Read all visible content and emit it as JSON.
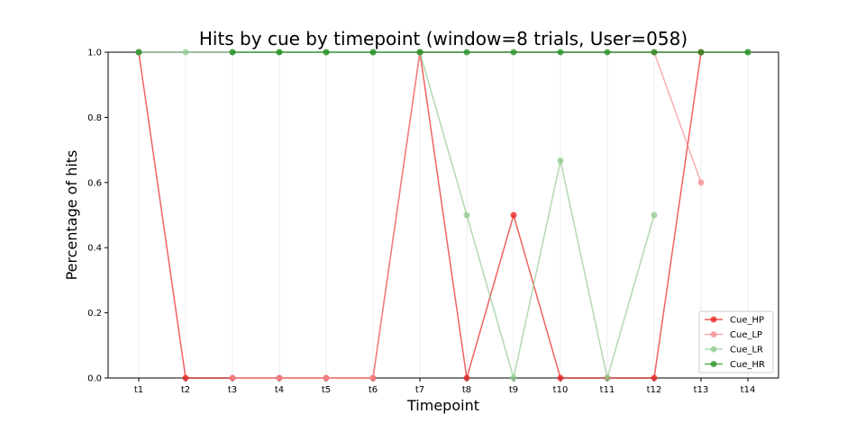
{
  "chart_data": {
    "type": "line",
    "title": "Hits by cue by timepoint (window=8 trials, User=058)",
    "xlabel": "Timepoint",
    "ylabel": "Percentage of hits",
    "categories": [
      "t1",
      "t2",
      "t3",
      "t4",
      "t5",
      "t6",
      "t7",
      "t8",
      "t9",
      "t10",
      "t11",
      "t12",
      "t13",
      "t14"
    ],
    "ylim": [
      0,
      1
    ],
    "yticks": [
      "0.0",
      "0.2",
      "0.4",
      "0.6",
      "0.8",
      "1.0"
    ],
    "grid": "vertical",
    "legend_position": "bottom-right",
    "series": [
      {
        "name": "Cue_HP",
        "color": "#e8201c",
        "values": [
          1,
          0,
          0,
          0,
          0,
          0,
          1,
          0,
          0.5,
          0,
          0,
          0,
          1,
          null
        ]
      },
      {
        "name": "Cue_LP",
        "color": "#f48c8e",
        "values": [
          1,
          null,
          0,
          0,
          0,
          0,
          1,
          null,
          null,
          null,
          null,
          1,
          0.6,
          null
        ]
      },
      {
        "name": "Cue_LR",
        "color": "#8fca8f",
        "values": [
          1,
          1,
          1,
          1,
          1,
          1,
          1,
          0.5,
          0,
          0.667,
          0,
          0.5,
          null,
          1
        ]
      },
      {
        "name": "Cue_HR",
        "color": "#1f8f1f",
        "values": [
          1,
          null,
          1,
          1,
          1,
          1,
          1,
          1,
          1,
          1,
          1,
          1,
          1,
          1
        ]
      }
    ]
  }
}
